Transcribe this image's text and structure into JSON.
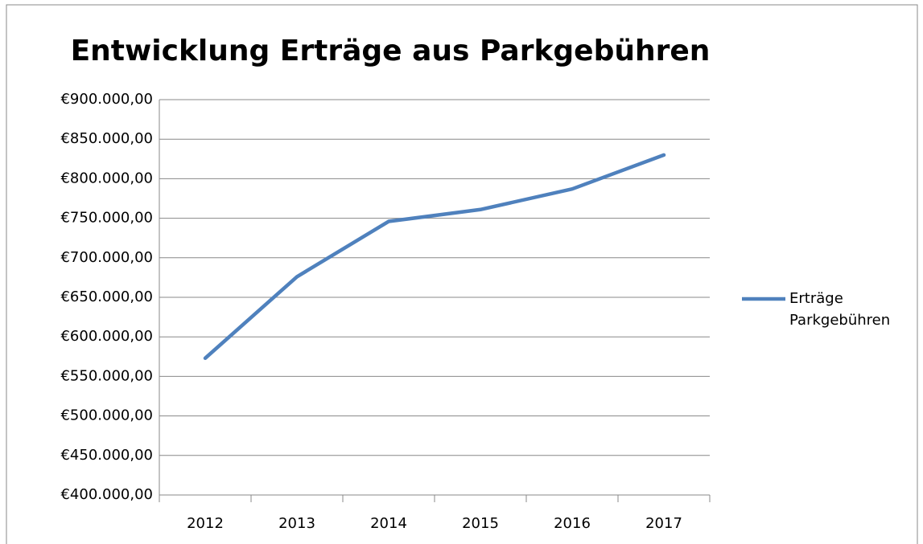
{
  "chart_data": {
    "type": "line",
    "title": "Entwicklung Erträge aus Parkgebühren",
    "categories": [
      "2012",
      "2013",
      "2014",
      "2015",
      "2016",
      "2017"
    ],
    "series": [
      {
        "name": "Erträge Parkgebühren",
        "color": "#4f81bd",
        "values": [
          573000,
          676000,
          746000,
          761000,
          787000,
          830000
        ]
      }
    ],
    "ylim": [
      400000,
      900000
    ],
    "yticks": [
      {
        "value": 400000,
        "label": "€400.000,00"
      },
      {
        "value": 450000,
        "label": "€450.000,00"
      },
      {
        "value": 500000,
        "label": "€500.000,00"
      },
      {
        "value": 550000,
        "label": "€550.000,00"
      },
      {
        "value": 600000,
        "label": "€600.000,00"
      },
      {
        "value": 650000,
        "label": "€650.000,00"
      },
      {
        "value": 700000,
        "label": "€700.000,00"
      },
      {
        "value": 750000,
        "label": "€750.000,00"
      },
      {
        "value": 800000,
        "label": "€800.000,00"
      },
      {
        "value": 850000,
        "label": "€850.000,00"
      },
      {
        "value": 900000,
        "label": "€900.000,00"
      }
    ],
    "grid": true,
    "legend": "right"
  }
}
